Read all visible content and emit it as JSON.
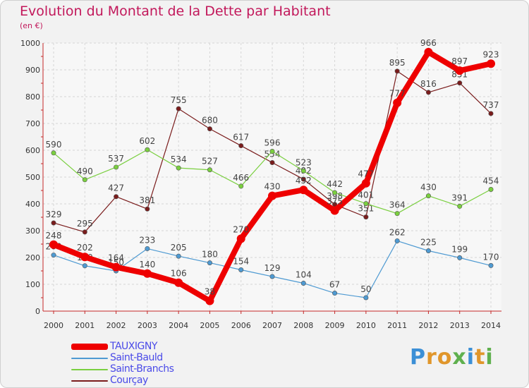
{
  "header": {
    "title": "Evolution du Montant de la Dette par Habitant",
    "subtitle": "(en €)"
  },
  "logo": {
    "letters": [
      "P",
      "r",
      "o",
      "x",
      "i",
      "t",
      "i"
    ],
    "colors": [
      "#3b8fd6",
      "#e0962b",
      "#e0962b",
      "#5fb04e",
      "#3b8fd6",
      "#e0962b",
      "#5fb04e"
    ]
  },
  "chart_data": {
    "type": "line",
    "title": "Evolution du Montant de la Dette par Habitant",
    "subtitle": "(en €)",
    "xlabel": "",
    "ylabel": "",
    "x": [
      "2000",
      "2001",
      "2002",
      "2003",
      "2004",
      "2005",
      "2006",
      "2007",
      "2008",
      "2009",
      "2010",
      "2011",
      "2012",
      "2013",
      "2014"
    ],
    "yticks": [
      "0",
      "100",
      "200",
      "300",
      "400",
      "500",
      "600",
      "700",
      "800",
      "900",
      "1000"
    ],
    "ylim": [
      0,
      1000
    ],
    "grid": true,
    "legend": "bottom-left",
    "series": [
      {
        "name": "Courçay",
        "color": "#7a1c1c",
        "values": [
          329,
          295,
          427,
          381,
          755,
          680,
          617,
          554,
          492,
          398,
          351,
          895,
          816,
          851,
          737
        ],
        "labels": [
          "329",
          "295",
          "427",
          "381",
          "755",
          "680",
          "617",
          "554",
          "492",
          "398",
          "351",
          "895",
          "816",
          "851",
          "737"
        ]
      },
      {
        "name": "Saint-Branchs",
        "color": "#7acf3f",
        "values": [
          590,
          490,
          537,
          602,
          534,
          527,
          466,
          596,
          523,
          442,
          401,
          364,
          430,
          391,
          454
        ],
        "labels": [
          "590",
          "490",
          "537",
          "602",
          "534",
          "527",
          "466",
          "596",
          "523",
          "442",
          "401",
          "364",
          "430",
          "391",
          "454"
        ]
      },
      {
        "name": "Saint-Bauld",
        "color": "#4e9ad2",
        "values": [
          209,
          169,
          150,
          233,
          205,
          180,
          154,
          129,
          104,
          67,
          50,
          262,
          225,
          199,
          170
        ],
        "labels": [
          "209",
          "169",
          "150",
          "233",
          "205",
          "180",
          "154",
          "129",
          "104",
          "67",
          "50",
          "262",
          "225",
          "199",
          "170"
        ]
      },
      {
        "name": "TAUXIGNY",
        "color": "#ee0000",
        "values": [
          248,
          202,
          164,
          140,
          106,
          38,
          270,
          430,
          452,
          375,
          477,
          777,
          966,
          897,
          923
        ],
        "labels": [
          "248",
          "202",
          "164",
          "140",
          "106",
          "38",
          "270",
          "430",
          "452",
          "375",
          "477",
          "777",
          "966",
          "897",
          "923"
        ]
      }
    ],
    "legend_order": [
      3,
      2,
      1,
      0
    ]
  }
}
